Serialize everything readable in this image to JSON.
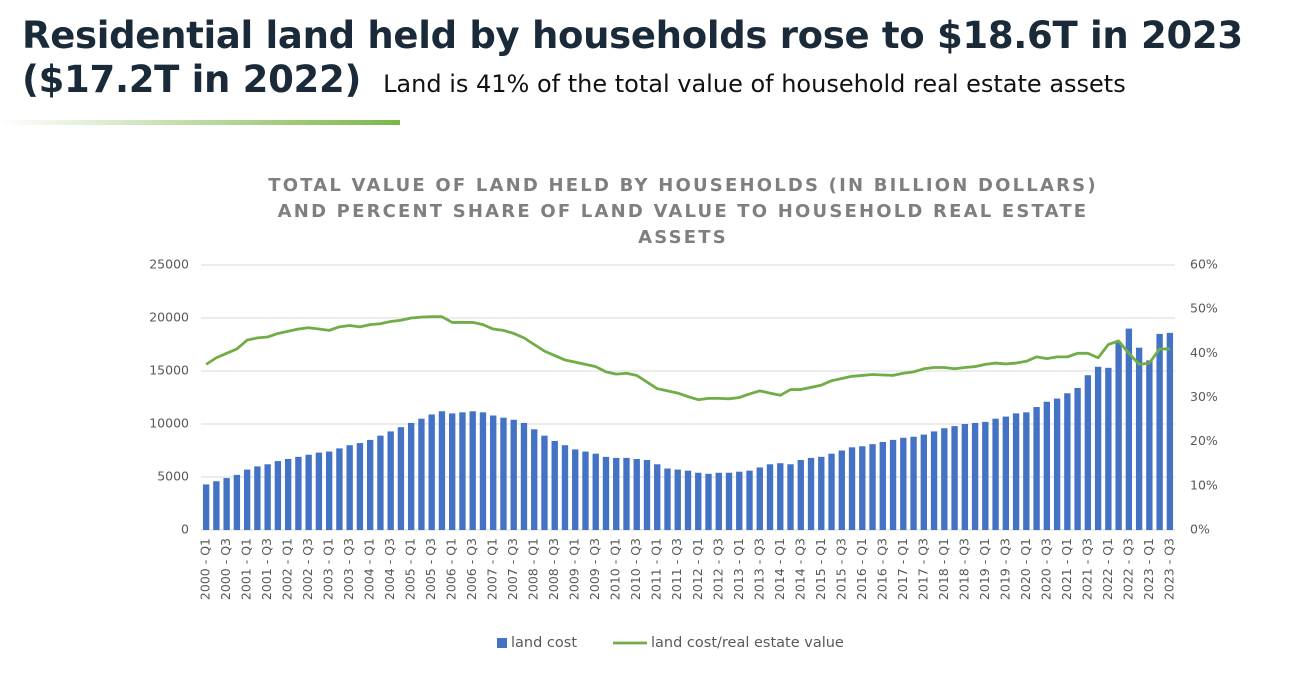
{
  "slide": {
    "title_lines": [
      "Residential land held by households rose to $18.6T in 2023",
      "($17.2T in 2022)"
    ],
    "subtitle": "Land is 41% of the total value of household real estate assets"
  },
  "chart_data": {
    "type": "combo",
    "title": "TOTAL VALUE OF LAND HELD BY HOUSEHOLDS (IN BILLION DOLLARS) AND PERCENT SHARE OF LAND VALUE TO HOUSEHOLD REAL ESTATE ASSETS",
    "categories": [
      "2000 - Q1",
      null,
      "2000 - Q3",
      null,
      "2001 - Q1",
      null,
      "2001 - Q3",
      null,
      "2002 - Q1",
      null,
      "2002 - Q3",
      null,
      "2003 - Q1",
      null,
      "2003 - Q3",
      null,
      "2004 - Q1",
      null,
      "2004 - Q3",
      null,
      "2005 - Q1",
      null,
      "2005 - Q3",
      null,
      "2006 - Q1",
      null,
      "2006 - Q3",
      null,
      "2007 - Q1",
      null,
      "2007 - Q3",
      null,
      "2008 - Q1",
      null,
      "2008 - Q3",
      null,
      "2009 - Q1",
      null,
      "2009 - Q3",
      null,
      "2010 - Q1",
      null,
      "2010 - Q3",
      null,
      "2011 - Q1",
      null,
      "2011 - Q3",
      null,
      "2012 - Q1",
      null,
      "2012 - Q3",
      null,
      "2013 - Q1",
      null,
      "2013 - Q3",
      null,
      "2014 - Q1",
      null,
      "2014 - Q3",
      null,
      "2015 - Q1",
      null,
      "2015 - Q3",
      null,
      "2016 - Q1",
      null,
      "2016 - Q3",
      null,
      "2017 - Q1",
      null,
      "2017 - Q3",
      null,
      "2018 - Q1",
      null,
      "2018 - Q3",
      null,
      "2019 - Q1",
      null,
      "2019 - Q3",
      null,
      "2020 - Q1",
      null,
      "2020 - Q3",
      null,
      "2021 - Q1",
      null,
      "2021 - Q3",
      null,
      "2022 - Q1",
      null,
      "2022 - Q3",
      null,
      "2023 - Q1",
      null,
      "2023 - Q3"
    ],
    "series": [
      {
        "name": "land cost",
        "type": "bar",
        "color": "#4472c4",
        "values": [
          4300,
          4600,
          4900,
          5200,
          5700,
          6000,
          6200,
          6500,
          6700,
          6900,
          7100,
          7300,
          7400,
          7700,
          8000,
          8200,
          8500,
          8900,
          9300,
          9700,
          10100,
          10500,
          10900,
          11200,
          11000,
          11100,
          11200,
          11100,
          10800,
          10600,
          10400,
          10100,
          9500,
          8900,
          8400,
          8000,
          7600,
          7400,
          7200,
          6900,
          6800,
          6800,
          6700,
          6600,
          6200,
          5800,
          5700,
          5600,
          5400,
          5300,
          5400,
          5400,
          5500,
          5600,
          5900,
          6200,
          6300,
          6200,
          6600,
          6800,
          6900,
          7200,
          7500,
          7800,
          7900,
          8100,
          8300,
          8500,
          8700,
          8800,
          9000,
          9300,
          9600,
          9800,
          10000,
          10100,
          10200,
          10500,
          10700,
          11000,
          11100,
          11600,
          12100,
          12400,
          12900,
          13400,
          14600,
          15400,
          15300,
          17700,
          19000,
          17200,
          16000,
          18500,
          18600
        ]
      },
      {
        "name": "land cost/real estate value",
        "type": "line",
        "axis": "y2",
        "color": "#70ad47",
        "values": [
          37.5,
          39,
          40,
          41,
          43,
          43.5,
          43.7,
          44.5,
          45,
          45.5,
          45.8,
          45.5,
          45.2,
          46,
          46.3,
          46,
          46.5,
          46.7,
          47.2,
          47.5,
          48,
          48.2,
          48.3,
          48.3,
          47,
          47,
          47,
          46.5,
          45.5,
          45.2,
          44.5,
          43.5,
          42,
          40.5,
          39.5,
          38.5,
          38,
          37.5,
          37,
          35.8,
          35.3,
          35.5,
          35,
          33.5,
          32,
          31.5,
          31,
          30.2,
          29.5,
          29.8,
          29.8,
          29.7,
          30,
          30.8,
          31.5,
          31,
          30.5,
          31.8,
          31.8,
          32.3,
          32.8,
          33.8,
          34.3,
          34.8,
          35,
          35.2,
          35.1,
          35,
          35.5,
          35.8,
          36.5,
          36.8,
          36.8,
          36.5,
          36.8,
          37,
          37.5,
          37.8,
          37.6,
          37.8,
          38.2,
          39.2,
          38.8,
          39.2,
          39.2,
          40,
          40,
          39,
          42,
          42.8,
          40,
          37.5,
          37.8,
          41,
          41
        ]
      }
    ],
    "ylim": [
      0,
      25000
    ],
    "yticks": [
      0,
      5000,
      10000,
      15000,
      20000,
      25000
    ],
    "y2lim": [
      0,
      60
    ],
    "y2ticks": [
      {
        "value": 0,
        "label": "0%"
      },
      {
        "value": 10,
        "label": "10%"
      },
      {
        "value": 20,
        "label": "20%"
      },
      {
        "value": 30,
        "label": "30%"
      },
      {
        "value": 40,
        "label": "40%"
      },
      {
        "value": 50,
        "label": "50%"
      },
      {
        "value": 60,
        "label": "60%"
      }
    ],
    "grid": true,
    "legend": "bottom"
  }
}
